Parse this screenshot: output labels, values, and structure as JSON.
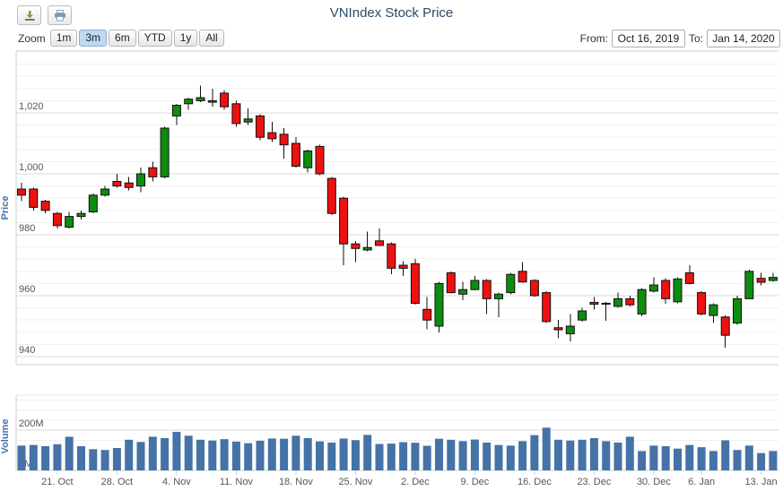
{
  "header": {
    "title": "VNIndex Stock Price",
    "zoom": {
      "label": "Zoom",
      "buttons": [
        "1m",
        "3m",
        "6m",
        "YTD",
        "1y",
        "All"
      ],
      "selected": "3m"
    },
    "range": {
      "from_label": "From:",
      "from_value": "Oct 16, 2019",
      "to_label": "To:",
      "to_value": "Jan 14, 2020"
    }
  },
  "price_axis": {
    "title": "Price",
    "tick_values": [
      940,
      960,
      980,
      1000,
      1020
    ],
    "tick_labels": [
      "940",
      "960",
      "980",
      "1,000",
      "1,020"
    ]
  },
  "volume_axis": {
    "title": "Volume",
    "tick_values": [
      0,
      200
    ],
    "tick_labels": [
      "0M",
      "200M"
    ]
  },
  "x_axis": {
    "tick_labels": [
      "21. Oct",
      "28. Oct",
      "4. Nov",
      "11. Nov",
      "18. Nov",
      "25. Nov",
      "2. Dec",
      "9. Dec",
      "16. Dec",
      "23. Dec",
      "30. Dec",
      "6. Jan",
      "13. Jan"
    ],
    "tick_indices": [
      3,
      8,
      13,
      18,
      23,
      28,
      33,
      38,
      43,
      48,
      53,
      57,
      62
    ]
  },
  "colors": {
    "up": "#0e8c0e",
    "down": "#ee1111",
    "candle_border": "#111111",
    "volume_bar": "#4572a7",
    "grid_major": "#d8d8d8",
    "grid_minor": "#f0f0f0",
    "axis_line": "#c7d3de",
    "border": "#cccccc",
    "title": "#274b6d",
    "axis_label": "#555555",
    "axis_title": "#4572a7"
  },
  "chart_data": [
    {
      "type": "candlestick",
      "title": "VNIndex Stock Price",
      "ylabel": "Price",
      "ylim": [
        937,
        1040
      ],
      "grid": {
        "major_step": 20,
        "minor_step": 4
      },
      "ohlc_order": "open,high,low,close",
      "dates": [
        "2019-10-16",
        "2019-10-17",
        "2019-10-18",
        "2019-10-21",
        "2019-10-22",
        "2019-10-23",
        "2019-10-24",
        "2019-10-25",
        "2019-10-28",
        "2019-10-29",
        "2019-10-30",
        "2019-10-31",
        "2019-11-01",
        "2019-11-04",
        "2019-11-05",
        "2019-11-06",
        "2019-11-07",
        "2019-11-08",
        "2019-11-11",
        "2019-11-12",
        "2019-11-13",
        "2019-11-14",
        "2019-11-15",
        "2019-11-18",
        "2019-11-19",
        "2019-11-20",
        "2019-11-21",
        "2019-11-22",
        "2019-11-25",
        "2019-11-26",
        "2019-11-27",
        "2019-11-28",
        "2019-11-29",
        "2019-12-02",
        "2019-12-03",
        "2019-12-04",
        "2019-12-05",
        "2019-12-06",
        "2019-12-09",
        "2019-12-10",
        "2019-12-11",
        "2019-12-12",
        "2019-12-13",
        "2019-12-16",
        "2019-12-17",
        "2019-12-18",
        "2019-12-19",
        "2019-12-20",
        "2019-12-23",
        "2019-12-24",
        "2019-12-25",
        "2019-12-26",
        "2019-12-27",
        "2019-12-30",
        "2019-12-31",
        "2020-01-02",
        "2020-01-03",
        "2020-01-06",
        "2020-01-07",
        "2020-01-08",
        "2020-01-09",
        "2020-01-10",
        "2020-01-13",
        "2020-01-14"
      ],
      "ohlc": [
        [
          995,
          997,
          991,
          993
        ],
        [
          995,
          995.5,
          988,
          989
        ],
        [
          991,
          991.5,
          987,
          988
        ],
        [
          987,
          987.5,
          982,
          983
        ],
        [
          982.5,
          987.5,
          982,
          986
        ],
        [
          986,
          988,
          985,
          987
        ],
        [
          987.5,
          993.5,
          987,
          993
        ],
        [
          993,
          996,
          992.5,
          995
        ],
        [
          997.5,
          1000,
          995.5,
          996
        ],
        [
          997,
          999,
          994.5,
          995.5
        ],
        [
          996,
          1002,
          994,
          1000
        ],
        [
          1002,
          1004,
          997.5,
          999
        ],
        [
          999,
          1015.5,
          998.5,
          1015
        ],
        [
          1019,
          1023,
          1016,
          1022.5
        ],
        [
          1023,
          1025,
          1021,
          1024.5
        ],
        [
          1024,
          1029,
          1023.5,
          1025
        ],
        [
          1023.5,
          1028,
          1022,
          1024
        ],
        [
          1026.5,
          1027.5,
          1021,
          1022
        ],
        [
          1023,
          1024,
          1015.5,
          1016.5
        ],
        [
          1017,
          1021.5,
          1016,
          1018
        ],
        [
          1019,
          1019.5,
          1011,
          1012
        ],
        [
          1013.5,
          1017,
          1010.5,
          1011.5
        ],
        [
          1013,
          1015,
          1005,
          1009.5
        ],
        [
          1010,
          1012,
          1002,
          1002.5
        ],
        [
          1002,
          1008,
          1000.5,
          1007.5
        ],
        [
          1009,
          1009.5,
          999.5,
          1000
        ],
        [
          998.5,
          999,
          986.5,
          987
        ],
        [
          992,
          992.5,
          970,
          977
        ],
        [
          977,
          978,
          971,
          975.5
        ],
        [
          975,
          981,
          974.5,
          975.8
        ],
        [
          978,
          982,
          976.3,
          976.5
        ],
        [
          977,
          977.5,
          967,
          969
        ],
        [
          970,
          971.3,
          966.4,
          969
        ],
        [
          970.5,
          972,
          957,
          957.5
        ],
        [
          955.5,
          959.5,
          949,
          952
        ],
        [
          950,
          964.5,
          948,
          964
        ],
        [
          967.5,
          968,
          960.8,
          961
        ],
        [
          960.5,
          964.5,
          958.5,
          962
        ],
        [
          962,
          966.5,
          961.8,
          965
        ],
        [
          965,
          965.5,
          954,
          959
        ],
        [
          959,
          961,
          953,
          960.5
        ],
        [
          961,
          967.5,
          960.5,
          967
        ],
        [
          968,
          971,
          964.3,
          964.5
        ],
        [
          965,
          965.5,
          959.5,
          960
        ],
        [
          961,
          961.5,
          951,
          951.5
        ],
        [
          949.5,
          952,
          946,
          948.8
        ],
        [
          947.5,
          954,
          945,
          950
        ],
        [
          952,
          956,
          951.5,
          955
        ],
        [
          957.8,
          959.5,
          955.5,
          957.2
        ],
        [
          957.5,
          958,
          951.7,
          957.2
        ],
        [
          956.5,
          961,
          956,
          959
        ],
        [
          959,
          960,
          956.5,
          957
        ],
        [
          954,
          962.5,
          953.3,
          962
        ],
        [
          961.5,
          966,
          961,
          963.5
        ],
        [
          965,
          965.7,
          957.3,
          959
        ],
        [
          958,
          966,
          957.5,
          965.5
        ],
        [
          967.5,
          970,
          963.7,
          964
        ],
        [
          961,
          961.5,
          953.5,
          954
        ],
        [
          953.5,
          957.5,
          951,
          957
        ],
        [
          953,
          953.5,
          943,
          947
        ],
        [
          951,
          960,
          950.5,
          959
        ],
        [
          959,
          968.5,
          959,
          968
        ],
        [
          965.7,
          967.5,
          963.4,
          964.4
        ],
        [
          965,
          967.5,
          964.5,
          966
        ]
      ]
    },
    {
      "type": "bar",
      "ylabel": "Volume",
      "unit": "M",
      "ylim": [
        0,
        340
      ],
      "grid": {
        "minor_step": 50
      },
      "dates": "same-as-candlestick-series",
      "values": [
        123,
        126,
        120,
        130,
        167,
        120,
        105,
        101,
        111,
        152,
        141,
        167,
        160,
        191,
        172,
        152,
        148,
        155,
        143,
        135,
        147,
        158,
        157,
        172,
        160,
        144,
        138,
        158,
        150,
        176,
        131,
        133,
        140,
        137,
        122,
        157,
        152,
        145,
        153,
        138,
        126,
        123,
        145,
        175,
        212,
        152,
        148,
        152,
        160,
        145,
        138,
        167,
        96,
        123,
        120,
        108,
        126,
        115,
        96,
        149,
        101,
        123,
        86,
        96
      ]
    }
  ]
}
